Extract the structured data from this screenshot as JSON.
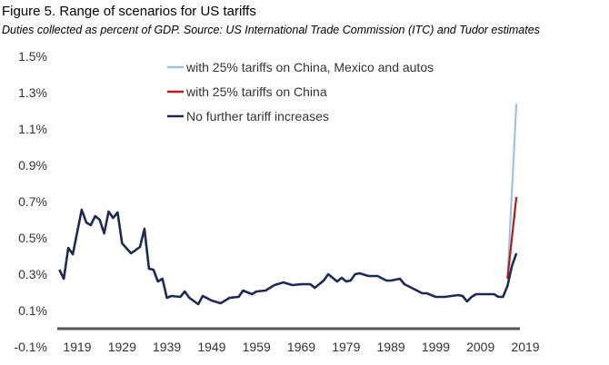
{
  "chart_data": {
    "type": "line",
    "title": "Figure 5. Range of scenarios for US tariffs",
    "subtitle": "Duties collected as percent of GDP. Source: US International Trade Commission (ITC) and Tudor estimates",
    "xlabel": "",
    "ylabel": "",
    "ylim": [
      -0.1,
      1.5
    ],
    "xlim": [
      1914,
      2020
    ],
    "grid": false,
    "legend_position": "top-center",
    "y_ticks": [
      "1.5%",
      "1.3%",
      "1.1%",
      "0.9%",
      "0.7%",
      "0.5%",
      "0.3%",
      "0.1%",
      "-0.1%"
    ],
    "y_tick_values": [
      1.5,
      1.3,
      1.1,
      0.9,
      0.7,
      0.5,
      0.3,
      0.1,
      -0.1
    ],
    "x_ticks": [
      "1919",
      "1929",
      "1939",
      "1949",
      "1959",
      "1969",
      "1979",
      "1989",
      "1999",
      "2009",
      "2019"
    ],
    "x_tick_values": [
      1919,
      1929,
      1939,
      1949,
      1959,
      1969,
      1979,
      1989,
      1999,
      2009,
      2019
    ],
    "axis_baseline": 0,
    "series": [
      {
        "name": "with 25% tariffs on China, Mexico and autos",
        "color": "#9cc3e4",
        "points": [
          [
            2015,
            0.275
          ],
          [
            2017,
            1.24
          ]
        ]
      },
      {
        "name": "with 25% tariffs on China",
        "color": "#b01c1c",
        "points": [
          [
            2015,
            0.275
          ],
          [
            2017,
            0.725
          ]
        ]
      },
      {
        "name": "No further tariff increases",
        "color": "#1e2a4f",
        "points": [
          [
            1915,
            0.325
          ],
          [
            1916,
            0.275
          ],
          [
            1917,
            0.445
          ],
          [
            1918,
            0.41
          ],
          [
            1920,
            0.655
          ],
          [
            1921,
            0.585
          ],
          [
            1922,
            0.57
          ],
          [
            1923,
            0.62
          ],
          [
            1924,
            0.6
          ],
          [
            1925,
            0.525
          ],
          [
            1926,
            0.645
          ],
          [
            1927,
            0.61
          ],
          [
            1928,
            0.64
          ],
          [
            1929,
            0.47
          ],
          [
            1931,
            0.415
          ],
          [
            1933,
            0.45
          ],
          [
            1934,
            0.55
          ],
          [
            1935,
            0.33
          ],
          [
            1936,
            0.325
          ],
          [
            1937,
            0.26
          ],
          [
            1938,
            0.275
          ],
          [
            1939,
            0.17
          ],
          [
            1940,
            0.18
          ],
          [
            1942,
            0.175
          ],
          [
            1943,
            0.205
          ],
          [
            1944,
            0.17
          ],
          [
            1946,
            0.135
          ],
          [
            1947,
            0.18
          ],
          [
            1949,
            0.155
          ],
          [
            1951,
            0.14
          ],
          [
            1953,
            0.17
          ],
          [
            1955,
            0.175
          ],
          [
            1956,
            0.21
          ],
          [
            1958,
            0.19
          ],
          [
            1959,
            0.205
          ],
          [
            1961,
            0.21
          ],
          [
            1963,
            0.24
          ],
          [
            1965,
            0.255
          ],
          [
            1967,
            0.24
          ],
          [
            1969,
            0.245
          ],
          [
            1971,
            0.245
          ],
          [
            1972,
            0.225
          ],
          [
            1974,
            0.265
          ],
          [
            1975,
            0.3
          ],
          [
            1977,
            0.26
          ],
          [
            1978,
            0.28
          ],
          [
            1979,
            0.26
          ],
          [
            1980,
            0.265
          ],
          [
            1981,
            0.3
          ],
          [
            1982,
            0.305
          ],
          [
            1984,
            0.29
          ],
          [
            1986,
            0.29
          ],
          [
            1988,
            0.265
          ],
          [
            1989,
            0.265
          ],
          [
            1991,
            0.275
          ],
          [
            1992,
            0.245
          ],
          [
            1994,
            0.22
          ],
          [
            1996,
            0.195
          ],
          [
            1997,
            0.195
          ],
          [
            1999,
            0.175
          ],
          [
            2001,
            0.175
          ],
          [
            2004,
            0.185
          ],
          [
            2005,
            0.18
          ],
          [
            2006,
            0.15
          ],
          [
            2007,
            0.175
          ],
          [
            2008,
            0.19
          ],
          [
            2012,
            0.19
          ],
          [
            2013,
            0.175
          ],
          [
            2014,
            0.175
          ],
          [
            2015,
            0.235
          ],
          [
            2016,
            0.345
          ],
          [
            2017,
            0.415
          ]
        ]
      }
    ]
  }
}
